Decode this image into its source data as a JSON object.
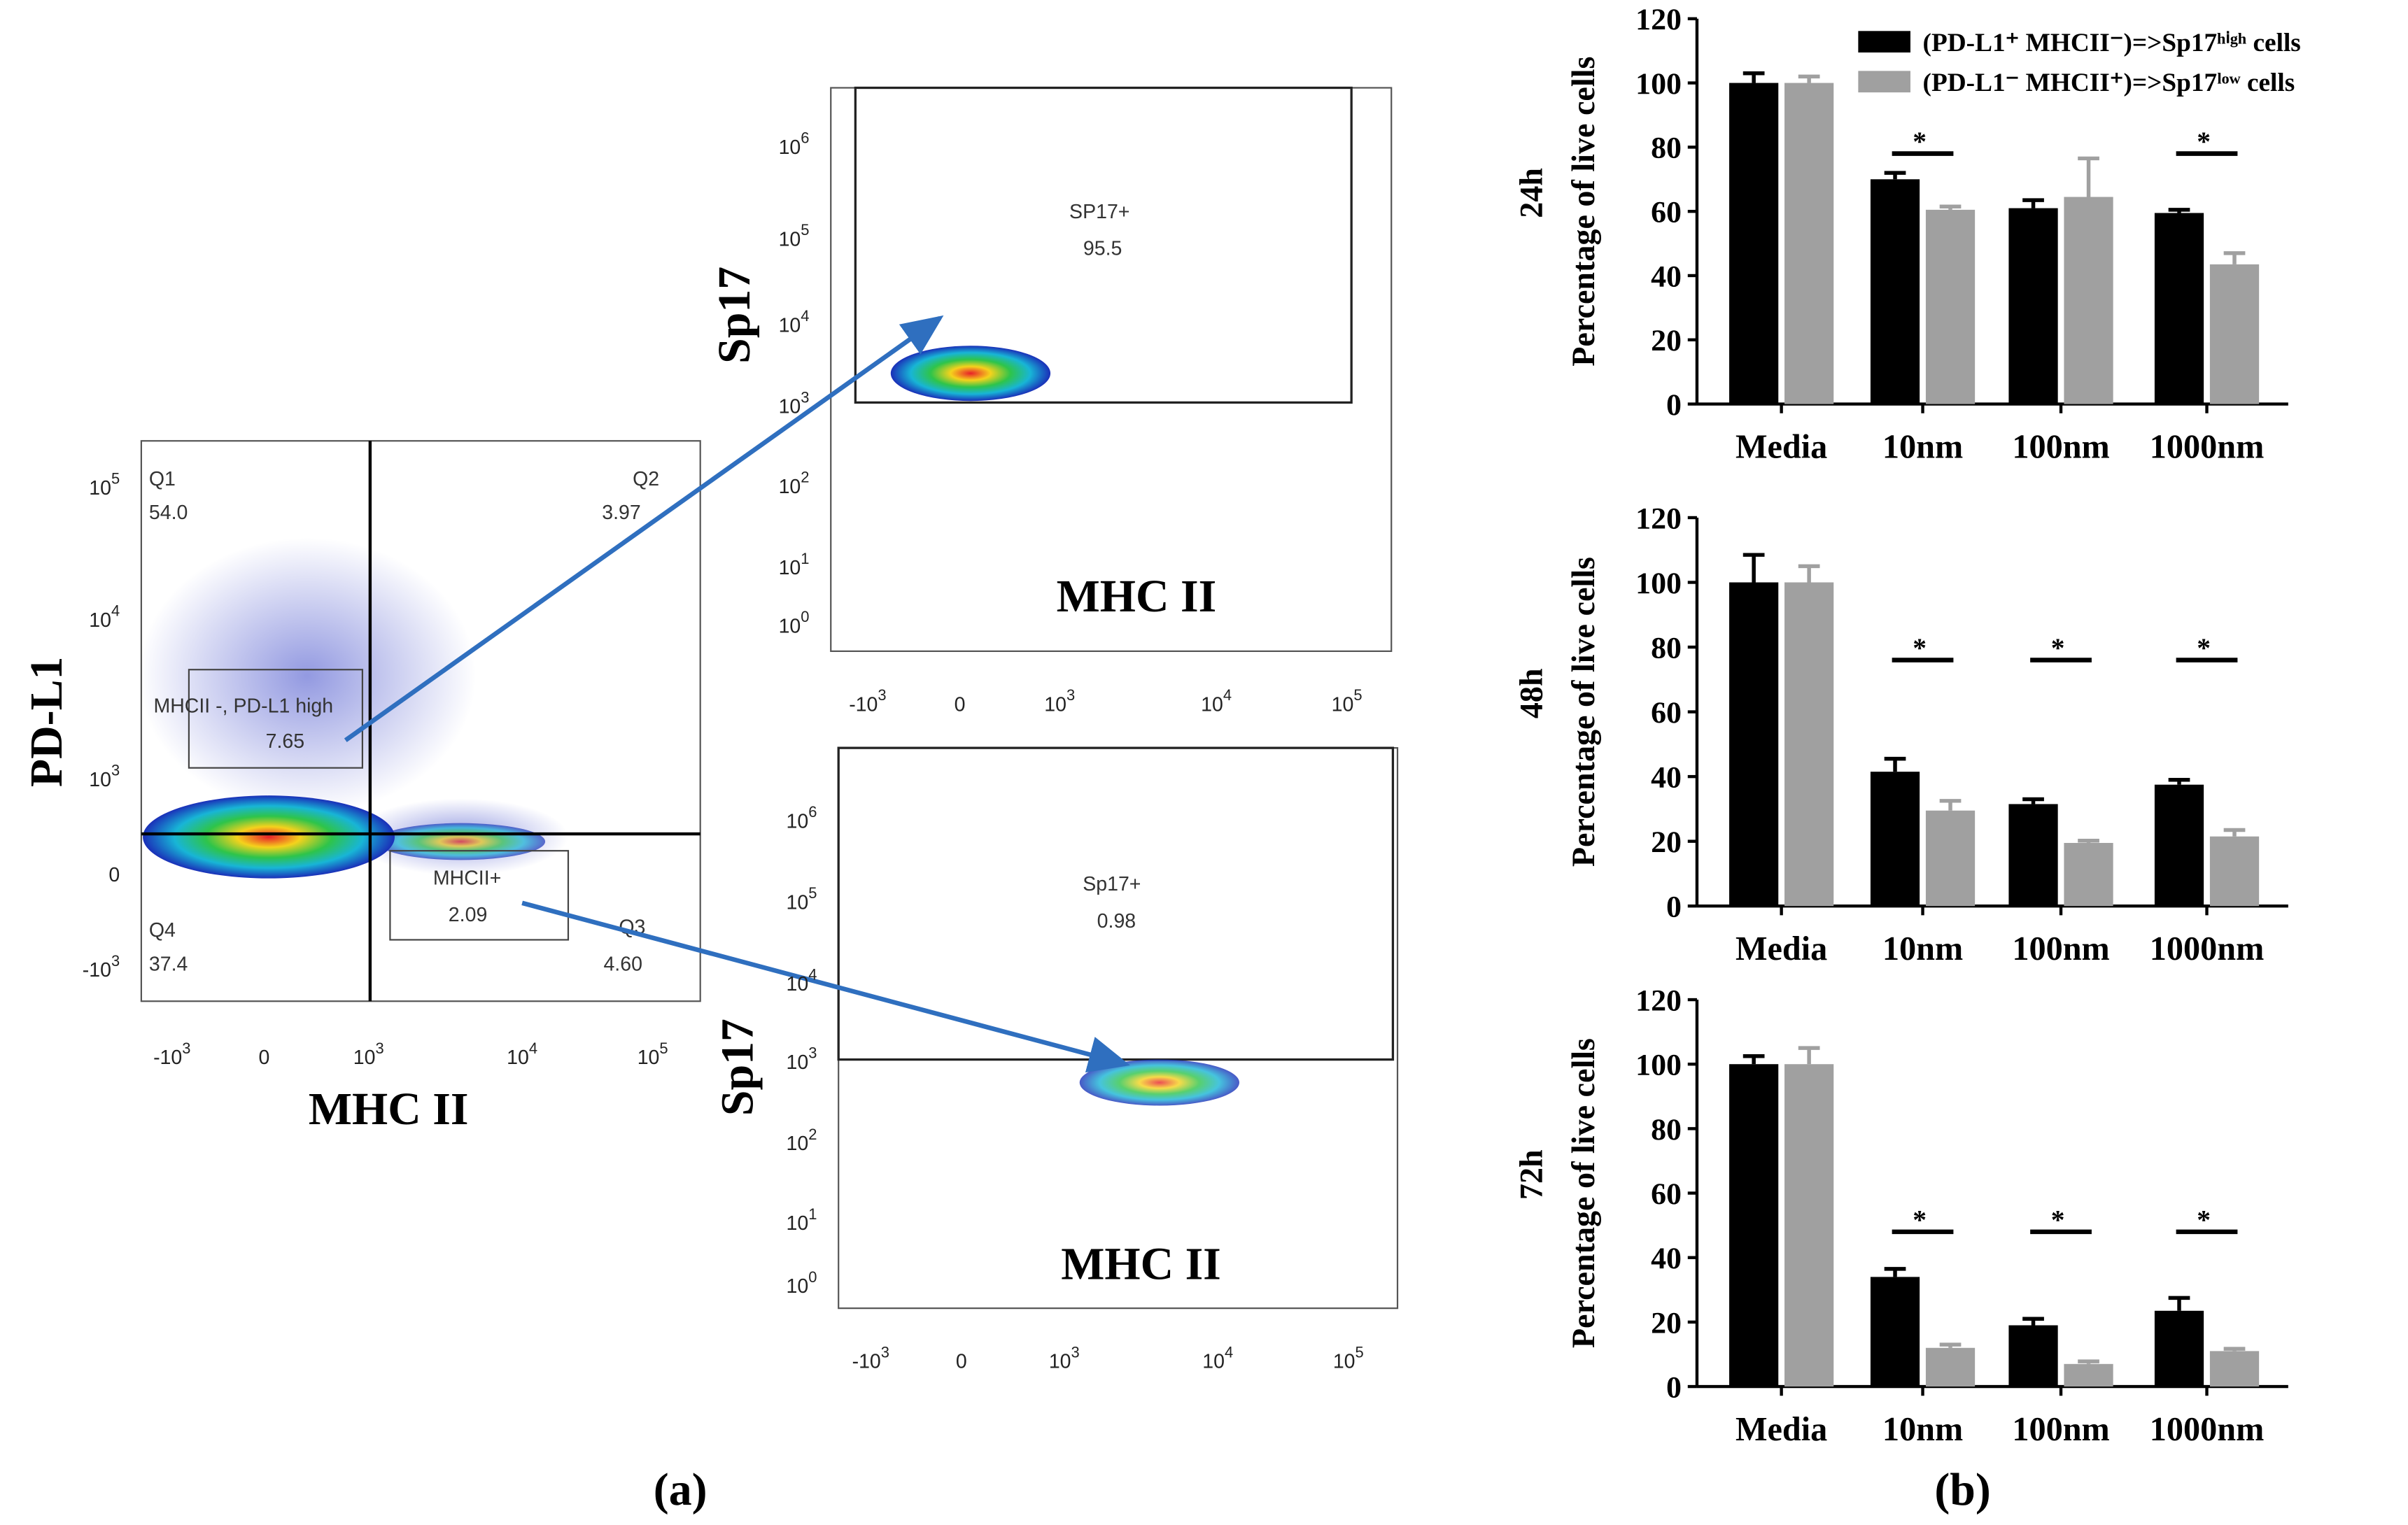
{
  "flow_plots": {
    "main": {
      "x_label": "MHC II",
      "y_label": "PD-L1",
      "q1": {
        "name": "Q1",
        "value": "54.0"
      },
      "q2": {
        "name": "Q2",
        "value": "3.97"
      },
      "q3": {
        "name": "Q3",
        "value": "4.60"
      },
      "q4": {
        "name": "Q4",
        "value": "37.4"
      },
      "gate_high": {
        "name": "MHCII -, PD-L1 high",
        "value": "7.65"
      },
      "gate_mhc": {
        "name": "MHCII+",
        "value": "2.09"
      },
      "yticks": [
        {
          "base": "10",
          "exp": "5"
        },
        {
          "base": "10",
          "exp": "4"
        },
        {
          "base": "10",
          "exp": "3"
        },
        {
          "base": "0"
        },
        {
          "base": "-10",
          "exp": "3"
        }
      ],
      "xticks": [
        {
          "base": "-10",
          "exp": "3"
        },
        {
          "base": "0"
        },
        {
          "base": "10",
          "exp": "3"
        },
        {
          "base": "10",
          "exp": "4"
        },
        {
          "base": "10",
          "exp": "5"
        }
      ]
    },
    "top": {
      "x_label": "MHC II",
      "y_label": "Sp17",
      "gate": {
        "name": "SP17+",
        "value": "95.5"
      },
      "yticks": [
        {
          "base": "10",
          "exp": "6"
        },
        {
          "base": "10",
          "exp": "5"
        },
        {
          "base": "10",
          "exp": "4"
        },
        {
          "base": "10",
          "exp": "3"
        },
        {
          "base": "10",
          "exp": "2"
        },
        {
          "base": "10",
          "exp": "1"
        },
        {
          "base": "10",
          "exp": "0"
        }
      ],
      "xticks": [
        {
          "base": "-10",
          "exp": "3"
        },
        {
          "base": "0"
        },
        {
          "base": "10",
          "exp": "3"
        },
        {
          "base": "10",
          "exp": "4"
        },
        {
          "base": "10",
          "exp": "5"
        }
      ]
    },
    "bottom": {
      "x_label": "MHC II",
      "y_label": "Sp17",
      "gate": {
        "name": "Sp17+",
        "value": "0.98"
      },
      "yticks": [
        {
          "base": "10",
          "exp": "6"
        },
        {
          "base": "10",
          "exp": "5"
        },
        {
          "base": "10",
          "exp": "4"
        },
        {
          "base": "10",
          "exp": "3"
        },
        {
          "base": "10",
          "exp": "2"
        },
        {
          "base": "10",
          "exp": "1"
        },
        {
          "base": "10",
          "exp": "0"
        }
      ],
      "xticks": [
        {
          "base": "-10",
          "exp": "3"
        },
        {
          "base": "0"
        },
        {
          "base": "10",
          "exp": "3"
        },
        {
          "base": "10",
          "exp": "4"
        },
        {
          "base": "10",
          "exp": "5"
        }
      ]
    }
  },
  "captions": {
    "a": "(a)",
    "b": "(b)"
  },
  "chart_data": [
    {
      "type": "bar",
      "panel_label": "24h",
      "y_label": "Percentage of live cells",
      "categories": [
        "Media",
        "10nm",
        "100nm",
        "1000nm"
      ],
      "ylim": [
        0,
        120
      ],
      "yticks": [
        0,
        20,
        40,
        60,
        80,
        100,
        120
      ],
      "legend": "top-right",
      "significance": [
        null,
        "*",
        null,
        "*"
      ],
      "series": [
        {
          "name": "(PD-L1⁺ MHCII⁻)=>Sp17ʰⁱᵍʰ cells",
          "color": "#000000",
          "values": [
            100,
            70,
            61,
            59.5
          ],
          "errors": [
            3,
            2,
            2.5,
            1
          ]
        },
        {
          "name": "(PD-L1⁻ MHCII⁺)=>Sp17ˡᵒʷ cells",
          "color": "#a0a0a0",
          "values": [
            100,
            60.5,
            64.5,
            43.5
          ],
          "errors": [
            2,
            1,
            12,
            3.5
          ]
        }
      ]
    },
    {
      "type": "bar",
      "panel_label": "48h",
      "y_label": "Percentage of live cells",
      "categories": [
        "Media",
        "10nm",
        "100nm",
        "1000nm"
      ],
      "ylim": [
        0,
        120
      ],
      "yticks": [
        0,
        20,
        40,
        60,
        80,
        100,
        120
      ],
      "significance": [
        null,
        "*",
        "*",
        "*"
      ],
      "series": [
        {
          "color": "#000000",
          "values": [
            100,
            41.5,
            31.5,
            37.5
          ],
          "errors": [
            8.5,
            4,
            1.5,
            1.5
          ]
        },
        {
          "color": "#a0a0a0",
          "values": [
            100,
            29.5,
            19.5,
            21.5
          ],
          "errors": [
            5,
            3,
            0.7,
            2
          ]
        }
      ]
    },
    {
      "type": "bar",
      "panel_label": "72h",
      "y_label": "Percentage of live cells",
      "categories": [
        "Media",
        "10nm",
        "100nm",
        "1000nm"
      ],
      "ylim": [
        0,
        120
      ],
      "yticks": [
        0,
        20,
        40,
        60,
        80,
        100,
        120
      ],
      "significance": [
        null,
        "*",
        "*",
        "*"
      ],
      "series": [
        {
          "color": "#000000",
          "values": [
            100,
            34,
            19,
            23.5
          ],
          "errors": [
            2.5,
            2.5,
            2,
            4
          ]
        },
        {
          "color": "#a0a0a0",
          "values": [
            100,
            12,
            7,
            11
          ],
          "errors": [
            5,
            1,
            0.8,
            0.7
          ]
        }
      ]
    }
  ]
}
